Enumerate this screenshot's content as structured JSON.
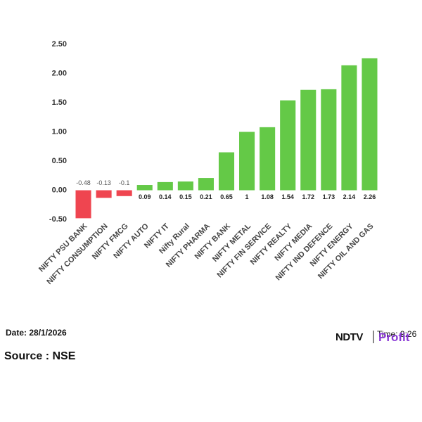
{
  "chart_data": {
    "type": "bar",
    "categories": [
      "NIFTY PSU BANK",
      "NIFTY CONSUMPTION",
      "NIFTY FMCG",
      "NIFTY AUTO",
      "NIFTY IT",
      "Nifty Rural",
      "NIFTY PHARMA",
      "NIFTY BANK",
      "NIFTY METAL",
      "NIFTY FIN SERVICE",
      "NIFTY REALTY",
      "NIFTY MEDIA",
      "NIFTY IND DEFENCE",
      "NIFTY ENERGY",
      "NIFTY OIL AND GAS"
    ],
    "values": [
      -0.48,
      -0.13,
      -0.1,
      0.09,
      0.14,
      0.15,
      0.21,
      0.65,
      1,
      1.08,
      1.54,
      1.72,
      1.73,
      2.14,
      2.26
    ],
    "positive_color": "#64c947",
    "negative_color": "#ef4550",
    "ylim": [
      -0.5,
      2.5
    ],
    "yticks": [
      {
        "value": -0.5,
        "label": "-0.50"
      },
      {
        "value": 0,
        "label": "0.00"
      },
      {
        "value": 0.5,
        "label": "0.50"
      },
      {
        "value": 1,
        "label": "1.00"
      },
      {
        "value": 1.5,
        "label": "1.50"
      },
      {
        "value": 2,
        "label": "2.00"
      },
      {
        "value": 2.5,
        "label": "2.50"
      }
    ],
    "grid": false
  },
  "footer": {
    "date": "Date: 28/1/2026",
    "source": "Source : NSE",
    "time": "Time: 9:26",
    "brand": "NDTV",
    "brand_sub": "Profit"
  }
}
